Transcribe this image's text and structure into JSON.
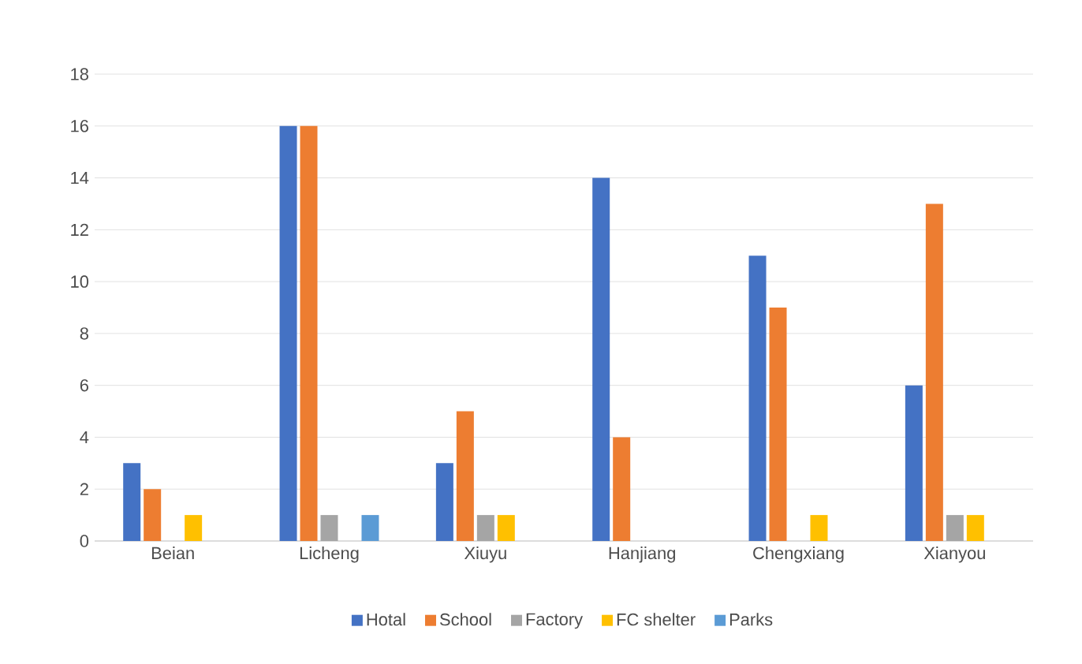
{
  "chart_data": {
    "type": "bar",
    "categories": [
      "Beian",
      "Licheng",
      "Xiuyu",
      "Hanjiang",
      "Chengxiang",
      "Xianyou"
    ],
    "series": [
      {
        "name": "Hotal",
        "color": "#4472c4",
        "values": [
          3,
          16,
          3,
          14,
          11,
          6
        ]
      },
      {
        "name": "School",
        "color": "#ed7d31",
        "values": [
          2,
          16,
          5,
          4,
          9,
          13
        ]
      },
      {
        "name": "Factory",
        "color": "#a5a5a5",
        "values": [
          0,
          1,
          1,
          0,
          0,
          1
        ]
      },
      {
        "name": "FC shelter",
        "color": "#ffc000",
        "values": [
          1,
          0,
          1,
          0,
          1,
          1
        ]
      },
      {
        "name": "Parks",
        "color": "#5b9bd5",
        "values": [
          0,
          1,
          0,
          0,
          0,
          0
        ]
      }
    ],
    "ylim": [
      0,
      18
    ],
    "yticks": [
      0,
      2,
      4,
      6,
      8,
      10,
      12,
      14,
      16,
      18
    ],
    "grid": "y",
    "legend": "bottom"
  }
}
